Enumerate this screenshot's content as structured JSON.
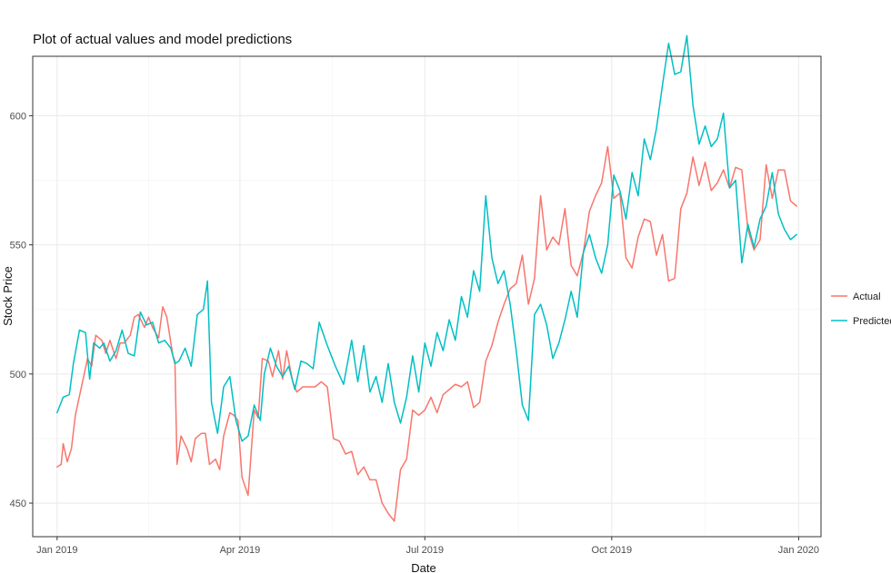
{
  "chart_data": {
    "type": "line",
    "title": "Plot of actual values and model predictions",
    "xlabel": "Date",
    "ylabel": "Stock Price",
    "x_type": "date",
    "xlim": [
      "2018-12-20",
      "2020-01-12"
    ],
    "ylim": [
      437,
      623
    ],
    "x_ticks": [
      {
        "date": "2019-01-01",
        "label": "Jan 2019"
      },
      {
        "date": "2019-04-01",
        "label": "Apr 2019"
      },
      {
        "date": "2019-07-01",
        "label": "Jul 2019"
      },
      {
        "date": "2019-10-01",
        "label": "Oct 2019"
      },
      {
        "date": "2020-01-01",
        "label": "Jan 2020"
      }
    ],
    "y_ticks": [
      {
        "value": 450,
        "label": "450"
      },
      {
        "value": 500,
        "label": "500"
      },
      {
        "value": 550,
        "label": "550"
      },
      {
        "value": 600,
        "label": "600"
      }
    ],
    "grid": true,
    "legend_position": "right",
    "series": [
      {
        "name": "Actual",
        "color": "#F8766D",
        "points": [
          [
            "2019-01-01",
            464
          ],
          [
            "2019-01-03",
            465
          ],
          [
            "2019-01-04",
            473
          ],
          [
            "2019-01-06",
            466
          ],
          [
            "2019-01-08",
            471
          ],
          [
            "2019-01-10",
            484
          ],
          [
            "2019-01-13",
            495
          ],
          [
            "2019-01-16",
            506
          ],
          [
            "2019-01-18",
            503
          ],
          [
            "2019-01-20",
            515
          ],
          [
            "2019-01-23",
            513
          ],
          [
            "2019-01-25",
            508
          ],
          [
            "2019-01-27",
            513
          ],
          [
            "2019-01-30",
            506
          ],
          [
            "2019-02-01",
            512
          ],
          [
            "2019-02-03",
            512
          ],
          [
            "2019-02-06",
            515
          ],
          [
            "2019-02-08",
            522
          ],
          [
            "2019-02-10",
            523
          ],
          [
            "2019-02-13",
            518
          ],
          [
            "2019-02-15",
            522
          ],
          [
            "2019-02-17",
            518
          ],
          [
            "2019-02-20",
            514
          ],
          [
            "2019-02-22",
            526
          ],
          [
            "2019-02-24",
            522
          ],
          [
            "2019-02-27",
            507
          ],
          [
            "2019-02-28",
            505
          ],
          [
            "2019-03-01",
            465
          ],
          [
            "2019-03-03",
            476
          ],
          [
            "2019-03-06",
            471
          ],
          [
            "2019-03-08",
            466
          ],
          [
            "2019-03-10",
            475
          ],
          [
            "2019-03-13",
            477
          ],
          [
            "2019-03-15",
            477
          ],
          [
            "2019-03-17",
            465
          ],
          [
            "2019-03-20",
            467
          ],
          [
            "2019-03-22",
            463
          ],
          [
            "2019-03-24",
            476
          ],
          [
            "2019-03-27",
            485
          ],
          [
            "2019-03-29",
            484
          ],
          [
            "2019-03-31",
            482
          ],
          [
            "2019-04-02",
            460
          ],
          [
            "2019-04-05",
            453
          ],
          [
            "2019-04-08",
            486
          ],
          [
            "2019-04-10",
            483
          ],
          [
            "2019-04-12",
            506
          ],
          [
            "2019-04-15",
            505
          ],
          [
            "2019-04-17",
            499
          ],
          [
            "2019-04-20",
            509
          ],
          [
            "2019-04-22",
            498
          ],
          [
            "2019-04-24",
            509
          ],
          [
            "2019-04-27",
            497
          ],
          [
            "2019-04-29",
            493
          ],
          [
            "2019-05-02",
            495
          ],
          [
            "2019-05-05",
            495
          ],
          [
            "2019-05-08",
            495
          ],
          [
            "2019-05-11",
            497
          ],
          [
            "2019-05-14",
            495
          ],
          [
            "2019-05-17",
            475
          ],
          [
            "2019-05-20",
            474
          ],
          [
            "2019-05-23",
            469
          ],
          [
            "2019-05-26",
            470
          ],
          [
            "2019-05-29",
            461
          ],
          [
            "2019-06-01",
            464
          ],
          [
            "2019-06-04",
            459
          ],
          [
            "2019-06-07",
            459
          ],
          [
            "2019-06-10",
            450
          ],
          [
            "2019-06-13",
            446
          ],
          [
            "2019-06-16",
            443
          ],
          [
            "2019-06-19",
            463
          ],
          [
            "2019-06-22",
            467
          ],
          [
            "2019-06-25",
            486
          ],
          [
            "2019-06-28",
            484
          ],
          [
            "2019-07-01",
            486
          ],
          [
            "2019-07-04",
            491
          ],
          [
            "2019-07-07",
            485
          ],
          [
            "2019-07-10",
            492
          ],
          [
            "2019-07-13",
            494
          ],
          [
            "2019-07-16",
            496
          ],
          [
            "2019-07-19",
            495
          ],
          [
            "2019-07-22",
            497
          ],
          [
            "2019-07-25",
            487
          ],
          [
            "2019-07-28",
            489
          ],
          [
            "2019-07-31",
            505
          ],
          [
            "2019-08-03",
            511
          ],
          [
            "2019-08-06",
            520
          ],
          [
            "2019-08-09",
            527
          ],
          [
            "2019-08-12",
            533
          ],
          [
            "2019-08-15",
            535
          ],
          [
            "2019-08-18",
            546
          ],
          [
            "2019-08-21",
            527
          ],
          [
            "2019-08-24",
            537
          ],
          [
            "2019-08-27",
            569
          ],
          [
            "2019-08-30",
            548
          ],
          [
            "2019-09-02",
            553
          ],
          [
            "2019-09-05",
            550
          ],
          [
            "2019-09-08",
            564
          ],
          [
            "2019-09-11",
            542
          ],
          [
            "2019-09-14",
            538
          ],
          [
            "2019-09-17",
            547
          ],
          [
            "2019-09-20",
            563
          ],
          [
            "2019-09-23",
            569
          ],
          [
            "2019-09-26",
            574
          ],
          [
            "2019-09-29",
            588
          ],
          [
            "2019-10-02",
            568
          ],
          [
            "2019-10-05",
            570
          ],
          [
            "2019-10-08",
            545
          ],
          [
            "2019-10-11",
            541
          ],
          [
            "2019-10-14",
            553
          ],
          [
            "2019-10-17",
            560
          ],
          [
            "2019-10-20",
            559
          ],
          [
            "2019-10-23",
            546
          ],
          [
            "2019-10-26",
            554
          ],
          [
            "2019-10-29",
            536
          ],
          [
            "2019-11-01",
            537
          ],
          [
            "2019-11-04",
            564
          ],
          [
            "2019-11-07",
            570
          ],
          [
            "2019-11-10",
            584
          ],
          [
            "2019-11-13",
            573
          ],
          [
            "2019-11-16",
            582
          ],
          [
            "2019-11-19",
            571
          ],
          [
            "2019-11-22",
            574
          ],
          [
            "2019-11-25",
            579
          ],
          [
            "2019-11-28",
            572
          ],
          [
            "2019-12-01",
            580
          ],
          [
            "2019-12-04",
            579
          ],
          [
            "2019-12-07",
            556
          ],
          [
            "2019-12-10",
            548
          ],
          [
            "2019-12-13",
            552
          ],
          [
            "2019-12-16",
            581
          ],
          [
            "2019-12-19",
            568
          ],
          [
            "2019-12-22",
            579
          ],
          [
            "2019-12-25",
            579
          ],
          [
            "2019-12-28",
            567
          ],
          [
            "2019-12-31",
            565
          ]
        ]
      },
      {
        "name": "Predicted",
        "color": "#00BFC4",
        "points": [
          [
            "2019-01-01",
            485
          ],
          [
            "2019-01-04",
            491
          ],
          [
            "2019-01-07",
            492
          ],
          [
            "2019-01-09",
            504
          ],
          [
            "2019-01-12",
            517
          ],
          [
            "2019-01-15",
            516
          ],
          [
            "2019-01-17",
            498
          ],
          [
            "2019-01-19",
            512
          ],
          [
            "2019-01-22",
            510
          ],
          [
            "2019-01-24",
            512
          ],
          [
            "2019-01-27",
            505
          ],
          [
            "2019-01-30",
            509
          ],
          [
            "2019-02-02",
            517
          ],
          [
            "2019-02-05",
            508
          ],
          [
            "2019-02-08",
            507
          ],
          [
            "2019-02-11",
            524
          ],
          [
            "2019-02-14",
            519
          ],
          [
            "2019-02-17",
            520
          ],
          [
            "2019-02-20",
            512
          ],
          [
            "2019-02-23",
            513
          ],
          [
            "2019-02-26",
            510
          ],
          [
            "2019-02-28",
            504
          ],
          [
            "2019-03-02",
            505
          ],
          [
            "2019-03-05",
            510
          ],
          [
            "2019-03-08",
            503
          ],
          [
            "2019-03-11",
            523
          ],
          [
            "2019-03-14",
            525
          ],
          [
            "2019-03-16",
            536
          ],
          [
            "2019-03-18",
            489
          ],
          [
            "2019-03-21",
            477
          ],
          [
            "2019-03-24",
            495
          ],
          [
            "2019-03-27",
            499
          ],
          [
            "2019-03-30",
            482
          ],
          [
            "2019-04-02",
            474
          ],
          [
            "2019-04-05",
            476
          ],
          [
            "2019-04-08",
            488
          ],
          [
            "2019-04-11",
            482
          ],
          [
            "2019-04-13",
            500
          ],
          [
            "2019-04-16",
            510
          ],
          [
            "2019-04-19",
            503
          ],
          [
            "2019-04-22",
            499
          ],
          [
            "2019-04-25",
            503
          ],
          [
            "2019-04-28",
            494
          ],
          [
            "2019-05-01",
            505
          ],
          [
            "2019-05-04",
            504
          ],
          [
            "2019-05-07",
            502
          ],
          [
            "2019-05-10",
            520
          ],
          [
            "2019-05-14",
            511
          ],
          [
            "2019-05-18",
            503
          ],
          [
            "2019-05-22",
            496
          ],
          [
            "2019-05-26",
            513
          ],
          [
            "2019-05-29",
            497
          ],
          [
            "2019-06-01",
            511
          ],
          [
            "2019-06-04",
            493
          ],
          [
            "2019-06-07",
            499
          ],
          [
            "2019-06-10",
            489
          ],
          [
            "2019-06-13",
            504
          ],
          [
            "2019-06-16",
            489
          ],
          [
            "2019-06-19",
            481
          ],
          [
            "2019-06-22",
            491
          ],
          [
            "2019-06-25",
            507
          ],
          [
            "2019-06-28",
            493
          ],
          [
            "2019-07-01",
            512
          ],
          [
            "2019-07-04",
            503
          ],
          [
            "2019-07-07",
            516
          ],
          [
            "2019-07-10",
            509
          ],
          [
            "2019-07-13",
            521
          ],
          [
            "2019-07-16",
            513
          ],
          [
            "2019-07-19",
            530
          ],
          [
            "2019-07-22",
            522
          ],
          [
            "2019-07-25",
            540
          ],
          [
            "2019-07-28",
            532
          ],
          [
            "2019-07-31",
            569
          ],
          [
            "2019-08-03",
            545
          ],
          [
            "2019-08-06",
            535
          ],
          [
            "2019-08-09",
            540
          ],
          [
            "2019-08-12",
            527
          ],
          [
            "2019-08-15",
            509
          ],
          [
            "2019-08-18",
            488
          ],
          [
            "2019-08-21",
            482
          ],
          [
            "2019-08-24",
            523
          ],
          [
            "2019-08-27",
            527
          ],
          [
            "2019-08-30",
            519
          ],
          [
            "2019-09-02",
            506
          ],
          [
            "2019-09-05",
            512
          ],
          [
            "2019-09-08",
            521
          ],
          [
            "2019-09-11",
            532
          ],
          [
            "2019-09-14",
            522
          ],
          [
            "2019-09-17",
            547
          ],
          [
            "2019-09-20",
            554
          ],
          [
            "2019-09-23",
            545
          ],
          [
            "2019-09-26",
            539
          ],
          [
            "2019-09-29",
            550
          ],
          [
            "2019-10-02",
            577
          ],
          [
            "2019-10-05",
            571
          ],
          [
            "2019-10-08",
            560
          ],
          [
            "2019-10-11",
            578
          ],
          [
            "2019-10-14",
            569
          ],
          [
            "2019-10-17",
            591
          ],
          [
            "2019-10-20",
            583
          ],
          [
            "2019-10-23",
            595
          ],
          [
            "2019-10-26",
            612
          ],
          [
            "2019-10-29",
            628
          ],
          [
            "2019-11-01",
            616
          ],
          [
            "2019-11-04",
            617
          ],
          [
            "2019-11-07",
            631
          ],
          [
            "2019-11-10",
            604
          ],
          [
            "2019-11-13",
            589
          ],
          [
            "2019-11-16",
            596
          ],
          [
            "2019-11-19",
            588
          ],
          [
            "2019-11-22",
            591
          ],
          [
            "2019-11-25",
            601
          ],
          [
            "2019-11-28",
            572
          ],
          [
            "2019-12-01",
            575
          ],
          [
            "2019-12-04",
            543
          ],
          [
            "2019-12-07",
            558
          ],
          [
            "2019-12-10",
            549
          ],
          [
            "2019-12-13",
            560
          ],
          [
            "2019-12-16",
            565
          ],
          [
            "2019-12-19",
            578
          ],
          [
            "2019-12-22",
            562
          ],
          [
            "2019-12-25",
            556
          ],
          [
            "2019-12-28",
            552
          ],
          [
            "2019-12-31",
            554
          ]
        ]
      }
    ]
  }
}
